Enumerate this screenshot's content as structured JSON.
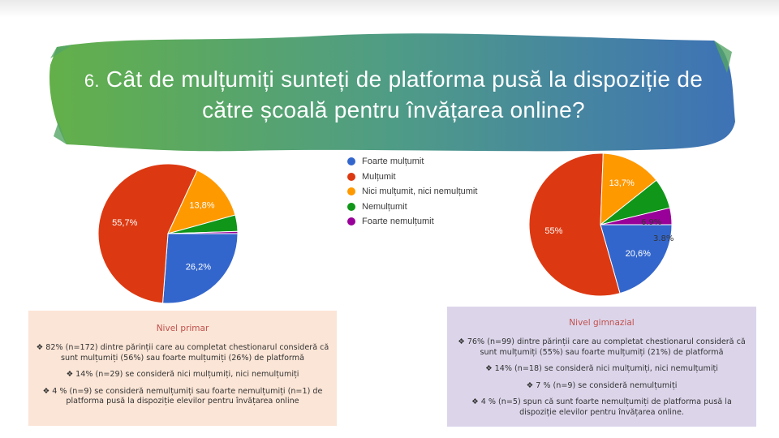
{
  "slide": {
    "title_number": "6.",
    "title_text": "Cât de mulțumiți sunteți de platforma pusă la dispoziție de către școală pentru învățarea online?",
    "banner_colors": [
      "#5fae4e",
      "#4d9a8c",
      "#3f74b4"
    ]
  },
  "legend": [
    {
      "label": "Foarte mulțumit",
      "color": "#3366cc"
    },
    {
      "label": "Mulțumit",
      "color": "#dc3912"
    },
    {
      "label": "Nici mulțumit, nici nemulțumit",
      "color": "#ff9900"
    },
    {
      "label": "Nemulțumit",
      "color": "#109618"
    },
    {
      "label": "Foarte nemulțumit",
      "color": "#990099"
    }
  ],
  "chart_data": [
    {
      "type": "pie",
      "categories": [
        "Foarte mulțumit",
        "Mulțumit",
        "Nici mulțumit, nici nemulțumit",
        "Nemulțumit",
        "Foarte nemulțumit"
      ],
      "values": [
        26.2,
        55.7,
        13.8,
        3.8,
        0.5
      ],
      "labels": [
        "26,2%",
        "55,7%",
        "13,8%",
        "",
        ""
      ],
      "colors": [
        "#3366cc",
        "#dc3912",
        "#ff9900",
        "#109618",
        "#990099"
      ]
    },
    {
      "type": "pie",
      "categories": [
        "Foarte mulțumit",
        "Mulțumit",
        "Nici mulțumit, nici nemulțumit",
        "Nemulțumit",
        "Foarte nemulțumit"
      ],
      "values": [
        20.6,
        55,
        13.7,
        6.9,
        3.8
      ],
      "labels": [
        "20,6%",
        "55%",
        "13,7%",
        "",
        ""
      ],
      "colors": [
        "#3366cc",
        "#dc3912",
        "#ff9900",
        "#109618",
        "#990099"
      ],
      "annotations": [
        "6.9%",
        "3.8%"
      ]
    }
  ],
  "primar": {
    "heading": "Nivel primar",
    "p1": "82% (n=172) dintre părinții care au completat chestionarul consideră că sunt mulțumiți (56%) sau foarte mulțumiți (26%)  de platformă",
    "p2": "14% (n=29) se consideră nici mulțumiți, nici nemulțumiți",
    "p3": "4 % (n=9) se consideră nemulțumiți sau foarte nemulțumiți (n=1) de platforma pusă la dispoziție elevilor pentru învățarea online"
  },
  "gimnazial": {
    "heading": "Nivel gimnazial",
    "p1": "76% (n=99) dintre părinții care au completat chestionarul consideră că sunt mulțumiți (55%) sau foarte mulțumiți (21%)  de platformă",
    "p2": "14% (n=18) se consideră nici mulțumiți, nici nemulțumiți",
    "p3": "7 % (n=9) se consideră nemulțumiți",
    "p4": "4 % (n=5) spun că sunt foarte nemulțumiți de platforma pusă la dispoziție elevilor pentru învățarea online."
  },
  "bullet_symbol": "❖"
}
